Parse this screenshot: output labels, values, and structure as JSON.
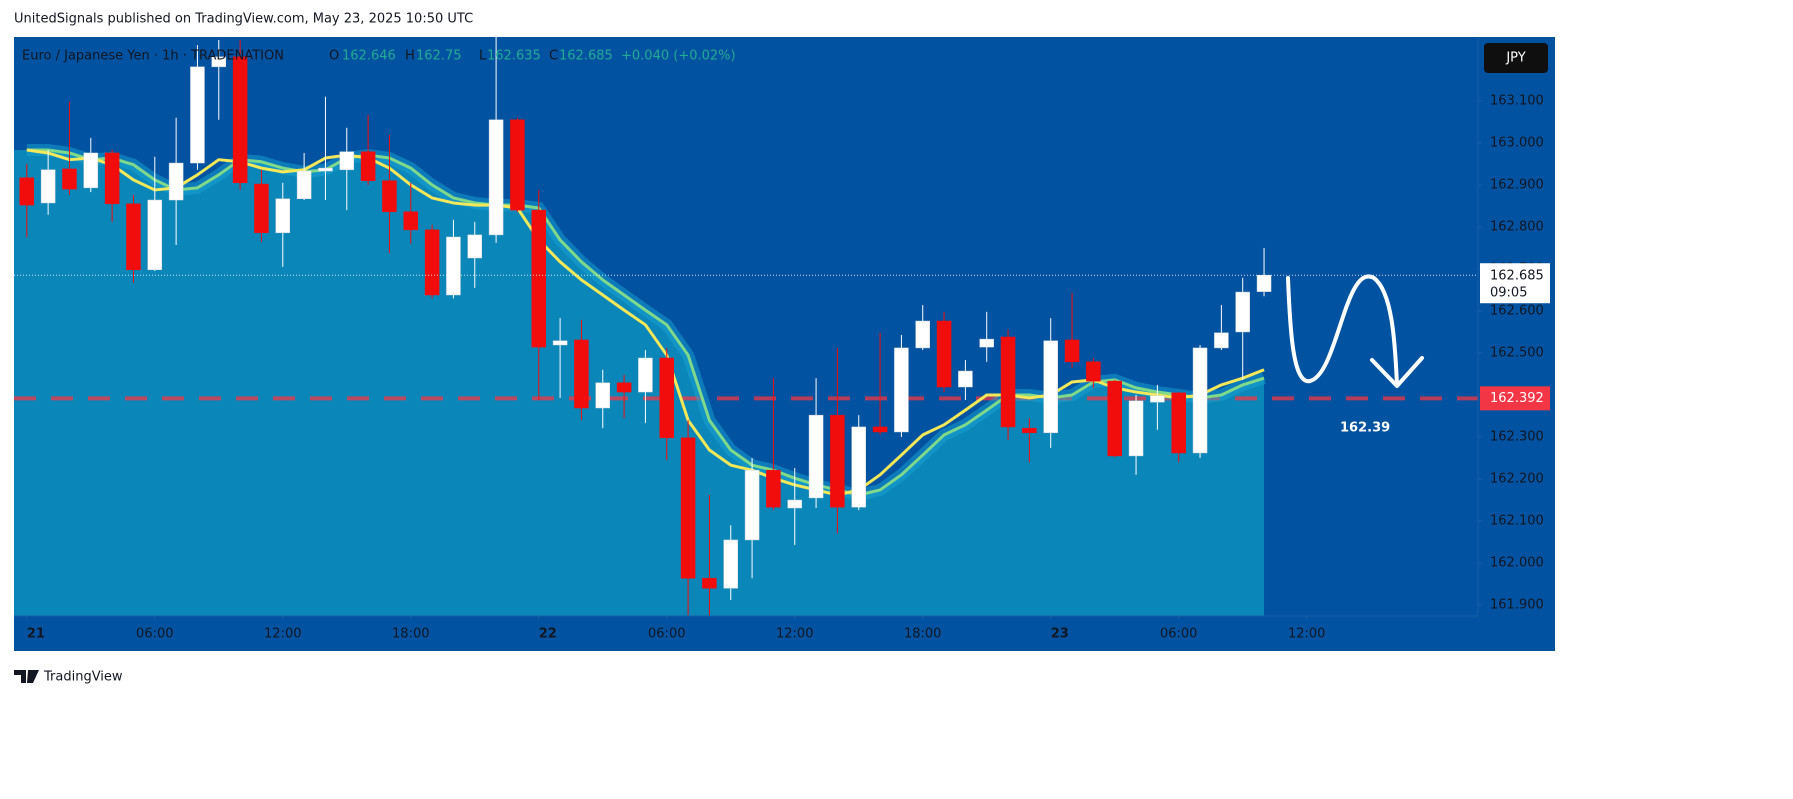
{
  "header": {
    "publisher": "UnitedSignals published on TradingView.com, May 23, 2025 10:50 UTC"
  },
  "footer": "TradingView",
  "chart_data": {
    "type": "candlestick",
    "title": "Euro / Japanese Yen · 1h · TRADENATION",
    "currency": "JPY",
    "ohlc_labels": [
      "O",
      "H",
      "L",
      "C"
    ],
    "change": "+0.040 (+0.02%)",
    "countdown": "09:05",
    "level": 162.392,
    "level_color": "#f23645",
    "annotation": "162.39",
    "up_color": "#ffffff",
    "down_color": "#f20d0d",
    "fill_color": "#0b86b8",
    "background": "#0152a0",
    "grid": false,
    "xlim": [
      -0.6,
      68.03
    ],
    "ylim": [
      161.874,
      163.252
    ],
    "xticks": [
      {
        "value": 0,
        "label": "21"
      },
      {
        "value": 6,
        "label": "06:00"
      },
      {
        "value": 12,
        "label": "12:00"
      },
      {
        "value": 18,
        "label": "18:00"
      },
      {
        "value": 24,
        "label": "22"
      },
      {
        "value": 30,
        "label": "06:00"
      },
      {
        "value": 36,
        "label": "12:00"
      },
      {
        "value": 42,
        "label": "18:00"
      },
      {
        "value": 48,
        "label": "23"
      },
      {
        "value": 54,
        "label": "06:00"
      },
      {
        "value": 60,
        "label": "12:00"
      }
    ],
    "yticks": [
      {
        "value": 161.9,
        "label": "161.900"
      },
      {
        "value": 162.0,
        "label": "162.000"
      },
      {
        "value": 162.1,
        "label": "162.100"
      },
      {
        "value": 162.2,
        "label": "162.200"
      },
      {
        "value": 162.3,
        "label": "162.300"
      },
      {
        "value": 162.4,
        "label": "162.400"
      },
      {
        "value": 162.5,
        "label": "162.500"
      },
      {
        "value": 162.6,
        "label": "162.600"
      },
      {
        "value": 162.7,
        "label": "162.700"
      },
      {
        "value": 162.8,
        "label": "162.800"
      },
      {
        "value": 162.9,
        "label": "162.900"
      },
      {
        "value": 163.0,
        "label": "163.000"
      },
      {
        "value": 163.1,
        "label": "163.100"
      }
    ],
    "x": [
      0,
      1,
      2,
      3,
      4,
      5,
      6,
      7,
      8,
      9,
      10,
      11,
      12,
      13,
      14,
      15,
      16,
      17,
      18,
      19,
      20,
      21,
      22,
      23,
      24,
      25,
      26,
      27,
      28,
      29,
      30,
      31,
      32,
      33,
      34,
      35,
      36,
      37,
      38,
      39,
      40,
      41,
      42,
      43,
      44,
      45,
      46,
      47,
      48,
      49,
      50,
      51,
      52,
      53,
      54,
      55,
      56,
      57,
      58
    ],
    "open": [
      162.917,
      162.857,
      162.938,
      162.893,
      162.976,
      162.855,
      162.698,
      162.864,
      162.952,
      163.181,
      163.205,
      162.902,
      162.786,
      162.867,
      162.933,
      162.936,
      162.979,
      162.91,
      162.836,
      162.793,
      162.638,
      162.726,
      162.781,
      163.055,
      162.84,
      162.519,
      162.531,
      162.369,
      162.429,
      162.407,
      162.488,
      162.298,
      161.964,
      161.94,
      162.055,
      162.221,
      162.131,
      162.155,
      162.352,
      162.133,
      162.324,
      162.312,
      162.512,
      162.576,
      162.419,
      162.514,
      162.538,
      162.321,
      162.31,
      162.531,
      162.479,
      162.433,
      162.255,
      162.383,
      162.405,
      162.262,
      162.512,
      162.55,
      162.646
    ],
    "high": [
      162.95,
      162.983,
      163.098,
      163.012,
      162.983,
      162.876,
      162.967,
      163.06,
      163.233,
      163.245,
      163.245,
      162.936,
      162.905,
      162.976,
      163.11,
      163.036,
      163.067,
      163.019,
      162.905,
      162.805,
      162.817,
      162.812,
      163.252,
      163.06,
      162.888,
      162.583,
      162.579,
      162.46,
      162.448,
      162.507,
      162.512,
      162.34,
      162.162,
      162.09,
      162.25,
      162.44,
      162.226,
      162.44,
      162.512,
      162.352,
      162.548,
      162.543,
      162.614,
      162.598,
      162.483,
      162.598,
      162.555,
      162.345,
      162.583,
      162.643,
      162.488,
      162.436,
      162.4,
      162.424,
      162.407,
      162.519,
      162.614,
      162.679,
      162.75
    ],
    "low": [
      162.775,
      162.829,
      162.876,
      162.883,
      162.812,
      162.667,
      162.695,
      162.757,
      162.936,
      163.055,
      162.888,
      162.764,
      162.705,
      162.864,
      162.864,
      162.84,
      162.9,
      162.738,
      162.76,
      162.63,
      162.63,
      162.655,
      162.762,
      162.835,
      162.388,
      162.393,
      162.34,
      162.321,
      162.345,
      162.333,
      162.245,
      161.876,
      161.876,
      161.912,
      161.964,
      162.126,
      162.043,
      162.131,
      162.071,
      162.126,
      162.305,
      162.3,
      162.507,
      162.407,
      162.388,
      162.479,
      162.293,
      162.24,
      162.274,
      162.464,
      162.417,
      162.252,
      162.21,
      162.317,
      162.24,
      162.25,
      162.507,
      162.436,
      162.635
    ],
    "close": [
      162.852,
      162.936,
      162.89,
      162.976,
      162.855,
      162.698,
      162.864,
      162.952,
      163.181,
      163.205,
      162.905,
      162.786,
      162.867,
      162.933,
      162.94,
      162.979,
      162.91,
      162.836,
      162.793,
      162.638,
      162.776,
      162.781,
      163.055,
      162.84,
      162.514,
      162.529,
      162.369,
      162.429,
      162.407,
      162.488,
      162.298,
      161.964,
      161.94,
      162.055,
      162.221,
      162.133,
      162.15,
      162.352,
      162.133,
      162.324,
      162.312,
      162.512,
      162.576,
      162.419,
      162.457,
      162.533,
      162.324,
      162.31,
      162.529,
      162.479,
      162.433,
      162.255,
      162.386,
      162.398,
      162.262,
      162.512,
      162.548,
      162.645,
      162.685
    ],
    "series": [
      {
        "color": "#7fd98a",
        "values": [
          162.983,
          162.983,
          162.976,
          162.96,
          162.964,
          162.948,
          162.912,
          162.888,
          162.893,
          162.924,
          162.96,
          162.955,
          162.94,
          162.931,
          162.936,
          162.964,
          162.971,
          162.964,
          162.94,
          162.9,
          162.869,
          162.857,
          162.852,
          162.852,
          162.845,
          162.769,
          162.717,
          162.674,
          162.638,
          162.602,
          162.567,
          162.495,
          162.34,
          162.269,
          162.233,
          162.221,
          162.202,
          162.186,
          162.174,
          162.162,
          162.174,
          162.21,
          162.257,
          162.305,
          162.329,
          162.364,
          162.4,
          162.4,
          162.393,
          162.4,
          162.431,
          162.436,
          162.417,
          162.407,
          162.4,
          162.393,
          162.4,
          162.424,
          162.44
        ]
      },
      {
        "color": "#f3e85a",
        "values": [
          162.983,
          162.976,
          162.96,
          162.964,
          162.948,
          162.912,
          162.888,
          162.893,
          162.924,
          162.96,
          162.955,
          162.94,
          162.931,
          162.936,
          162.964,
          162.971,
          162.964,
          162.94,
          162.9,
          162.869,
          162.857,
          162.852,
          162.852,
          162.845,
          162.769,
          162.717,
          162.674,
          162.638,
          162.602,
          162.567,
          162.495,
          162.34,
          162.269,
          162.233,
          162.221,
          162.202,
          162.186,
          162.174,
          162.162,
          162.174,
          162.21,
          162.257,
          162.305,
          162.329,
          162.364,
          162.4,
          162.4,
          162.393,
          162.4,
          162.431,
          162.436,
          162.417,
          162.407,
          162.4,
          162.393,
          162.4,
          162.424,
          162.44,
          162.46
        ]
      }
    ]
  }
}
